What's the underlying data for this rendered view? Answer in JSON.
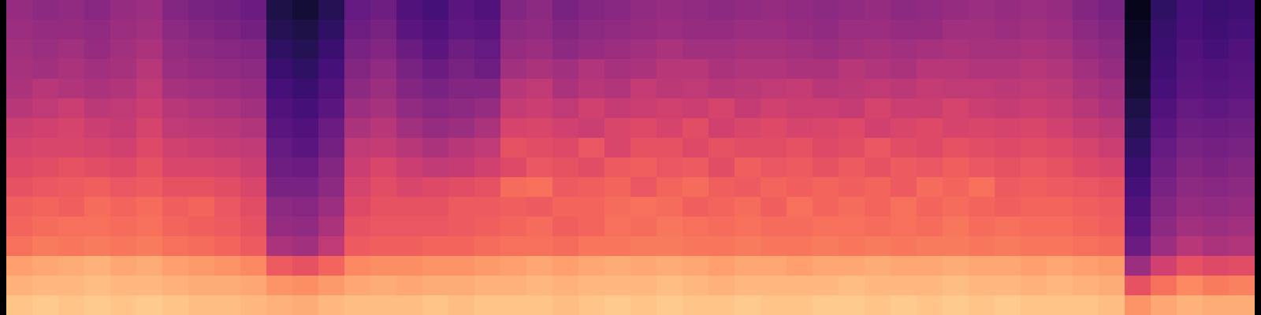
{
  "chart_data": {
    "type": "heatmap",
    "color": "magma",
    "tick_labels": false,
    "zlim": [
      -80,
      0
    ],
    "cells": [
      [
        -46,
        -45,
        -44,
        -43,
        -42,
        -40,
        -36,
        -34,
        -32,
        -30,
        -27,
        -26,
        -24,
        -16,
        -13,
        -10
      ],
      [
        -48,
        -46,
        -45,
        -44,
        -40,
        -38,
        -35,
        -33,
        -31,
        -29,
        -26,
        -25,
        -22,
        -15,
        -12,
        -9
      ],
      [
        -47,
        -46,
        -44,
        -42,
        -41,
        -36,
        -34,
        -33,
        -30,
        -28,
        -27,
        -24,
        -23,
        -14,
        -12,
        -10
      ],
      [
        -49,
        -47,
        -46,
        -44,
        -42,
        -39,
        -36,
        -34,
        -31,
        -27,
        -25,
        -24,
        -22,
        -13,
        -11,
        -9
      ],
      [
        -46,
        -45,
        -44,
        -43,
        -41,
        -38,
        -37,
        -35,
        -32,
        -29,
        -26,
        -25,
        -23,
        -15,
        -12,
        -10
      ],
      [
        -45,
        -44,
        -42,
        -40,
        -38,
        -36,
        -34,
        -32,
        -30,
        -28,
        -25,
        -24,
        -22,
        -14,
        -12,
        -9
      ],
      [
        -50,
        -48,
        -46,
        -45,
        -43,
        -40,
        -38,
        -35,
        -33,
        -30,
        -27,
        -26,
        -24,
        -16,
        -13,
        -10
      ],
      [
        -52,
        -50,
        -48,
        -46,
        -44,
        -41,
        -39,
        -36,
        -33,
        -30,
        -26,
        -27,
        -25,
        -17,
        -14,
        -11
      ],
      [
        -53,
        -51,
        -49,
        -47,
        -45,
        -42,
        -40,
        -37,
        -34,
        -31,
        -29,
        -28,
        -26,
        -18,
        -14,
        -11
      ],
      [
        -55,
        -53,
        -50,
        -48,
        -46,
        -44,
        -41,
        -38,
        -36,
        -33,
        -31,
        -30,
        -28,
        -20,
        -15,
        -12
      ],
      [
        -70,
        -68,
        -66,
        -64,
        -62,
        -60,
        -58,
        -56,
        -54,
        -52,
        -48,
        -46,
        -42,
        -28,
        -18,
        -13
      ],
      [
        -72,
        -70,
        -68,
        -66,
        -64,
        -62,
        -60,
        -58,
        -55,
        -52,
        -49,
        -47,
        -44,
        -30,
        -19,
        -14
      ],
      [
        -68,
        -66,
        -64,
        -62,
        -60,
        -58,
        -55,
        -53,
        -50,
        -48,
        -45,
        -42,
        -38,
        -26,
        -17,
        -12
      ],
      [
        -56,
        -54,
        -52,
        -50,
        -48,
        -45,
        -42,
        -38,
        -36,
        -34,
        -32,
        -30,
        -28,
        -20,
        -15,
        -11
      ],
      [
        -54,
        -52,
        -50,
        -47,
        -45,
        -43,
        -40,
        -37,
        -33,
        -31,
        -30,
        -29,
        -27,
        -19,
        -14,
        -11
      ],
      [
        -60,
        -58,
        -55,
        -52,
        -50,
        -47,
        -44,
        -40,
        -36,
        -33,
        -30,
        -29,
        -27,
        -19,
        -15,
        -11
      ],
      [
        -62,
        -60,
        -58,
        -55,
        -52,
        -49,
        -46,
        -42,
        -38,
        -32,
        -30,
        -29,
        -26,
        -18,
        -14,
        -10
      ],
      [
        -58,
        -57,
        -54,
        -52,
        -50,
        -48,
        -45,
        -40,
        -37,
        -31,
        -28,
        -28,
        -26,
        -18,
        -14,
        -11
      ],
      [
        -60,
        -58,
        -56,
        -54,
        -50,
        -46,
        -42,
        -38,
        -35,
        -30,
        -28,
        -27,
        -25,
        -17,
        -13,
        -10
      ],
      [
        -50,
        -48,
        -46,
        -44,
        -40,
        -37,
        -34,
        -30,
        -32,
        -25,
        -27,
        -26,
        -24,
        -16,
        -13,
        -10
      ],
      [
        -48,
        -47,
        -45,
        -42,
        -38,
        -36,
        -33,
        -31,
        -29,
        -24,
        -28,
        -25,
        -24,
        -15,
        -12,
        -10
      ],
      [
        -52,
        -50,
        -48,
        -44,
        -42,
        -38,
        -35,
        -32,
        -30,
        -28,
        -26,
        -27,
        -25,
        -16,
        -13,
        -11
      ],
      [
        -50,
        -48,
        -46,
        -41,
        -40,
        -35,
        -36,
        -29,
        -31,
        -27,
        -26,
        -26,
        -23,
        -15,
        -12,
        -10
      ],
      [
        -49,
        -47,
        -45,
        -43,
        -41,
        -37,
        -33,
        -33,
        -28,
        -26,
        -25,
        -24,
        -23,
        -14,
        -12,
        -9
      ],
      [
        -47,
        -46,
        -44,
        -42,
        -37,
        -36,
        -32,
        -30,
        -27,
        -29,
        -24,
        -25,
        -22,
        -15,
        -12,
        -10
      ],
      [
        -46,
        -45,
        -42,
        -40,
        -39,
        -35,
        -34,
        -30,
        -29,
        -26,
        -25,
        -23,
        -22,
        -14,
        -11,
        -9
      ],
      [
        -47,
        -46,
        -44,
        -40,
        -38,
        -36,
        -31,
        -32,
        -28,
        -25,
        -27,
        -24,
        -23,
        -15,
        -12,
        -10
      ],
      [
        -48,
        -46,
        -44,
        -42,
        -40,
        -34,
        -35,
        -30,
        -31,
        -27,
        -26,
        -25,
        -23,
        -16,
        -13,
        -10
      ],
      [
        -47,
        -45,
        -43,
        -41,
        -39,
        -37,
        -33,
        -31,
        -27,
        -28,
        -25,
        -24,
        -22,
        -15,
        -12,
        -9
      ],
      [
        -46,
        -45,
        -43,
        -41,
        -38,
        -35,
        -32,
        -31,
        -29,
        -26,
        -27,
        -25,
        -23,
        -15,
        -12,
        -10
      ],
      [
        -47,
        -46,
        -44,
        -42,
        -37,
        -36,
        -34,
        -30,
        -28,
        -27,
        -24,
        -25,
        -23,
        -16,
        -12,
        -10
      ],
      [
        -48,
        -47,
        -45,
        -42,
        -40,
        -36,
        -33,
        -32,
        -30,
        -26,
        -26,
        -24,
        -22,
        -15,
        -12,
        -9
      ],
      [
        -47,
        -45,
        -44,
        -40,
        -39,
        -37,
        -32,
        -31,
        -28,
        -27,
        -25,
        -24,
        -23,
        -15,
        -11,
        -9
      ],
      [
        -46,
        -45,
        -43,
        -41,
        -38,
        -34,
        -35,
        -29,
        -30,
        -26,
        -26,
        -25,
        -22,
        -14,
        -12,
        -10
      ],
      [
        -48,
        -46,
        -44,
        -42,
        -39,
        -36,
        -33,
        -31,
        -28,
        -28,
        -24,
        -24,
        -23,
        -15,
        -12,
        -9
      ],
      [
        -47,
        -46,
        -43,
        -40,
        -37,
        -36,
        -32,
        -32,
        -29,
        -25,
        -26,
        -25,
        -22,
        -15,
        -12,
        -10
      ],
      [
        -46,
        -44,
        -42,
        -40,
        -38,
        -34,
        -34,
        -30,
        -27,
        -26,
        -25,
        -23,
        -22,
        -14,
        -11,
        -9
      ],
      [
        -45,
        -44,
        -43,
        -41,
        -38,
        -36,
        -33,
        -31,
        -29,
        -24,
        -26,
        -25,
        -23,
        -15,
        -12,
        -10
      ],
      [
        -46,
        -45,
        -43,
        -41,
        -39,
        -37,
        -34,
        -32,
        -30,
        -28,
        -27,
        -24,
        -22,
        -15,
        -12,
        -9
      ],
      [
        -45,
        -44,
        -42,
        -40,
        -38,
        -36,
        -33,
        -31,
        -29,
        -27,
        -26,
        -25,
        -23,
        -16,
        -13,
        -10
      ],
      [
        -46,
        -45,
        -43,
        -41,
        -39,
        -37,
        -35,
        -32,
        -30,
        -28,
        -26,
        -25,
        -23,
        -15,
        -12,
        -10
      ],
      [
        -50,
        -48,
        -46,
        -44,
        -42,
        -40,
        -37,
        -34,
        -32,
        -29,
        -27,
        -26,
        -24,
        -16,
        -13,
        -10
      ],
      [
        -52,
        -50,
        -48,
        -46,
        -44,
        -42,
        -39,
        -36,
        -33,
        -30,
        -28,
        -27,
        -25,
        -17,
        -14,
        -11
      ],
      [
        -76,
        -75,
        -74,
        -73,
        -72,
        -70,
        -68,
        -66,
        -64,
        -62,
        -60,
        -58,
        -55,
        -45,
        -30,
        -18
      ],
      [
        -66,
        -65,
        -64,
        -63,
        -62,
        -60,
        -58,
        -56,
        -54,
        -52,
        -50,
        -48,
        -45,
        -35,
        -24,
        -15
      ],
      [
        -62,
        -61,
        -60,
        -59,
        -58,
        -56,
        -54,
        -52,
        -50,
        -48,
        -46,
        -44,
        -40,
        -30,
        -20,
        -13
      ],
      [
        -64,
        -63,
        -62,
        -60,
        -59,
        -57,
        -55,
        -53,
        -51,
        -49,
        -47,
        -45,
        -42,
        -32,
        -22,
        -14
      ],
      [
        -63,
        -62,
        -60,
        -59,
        -58,
        -56,
        -54,
        -52,
        -50,
        -48,
        -46,
        -44,
        -41,
        -31,
        -21,
        -14
      ]
    ]
  }
}
